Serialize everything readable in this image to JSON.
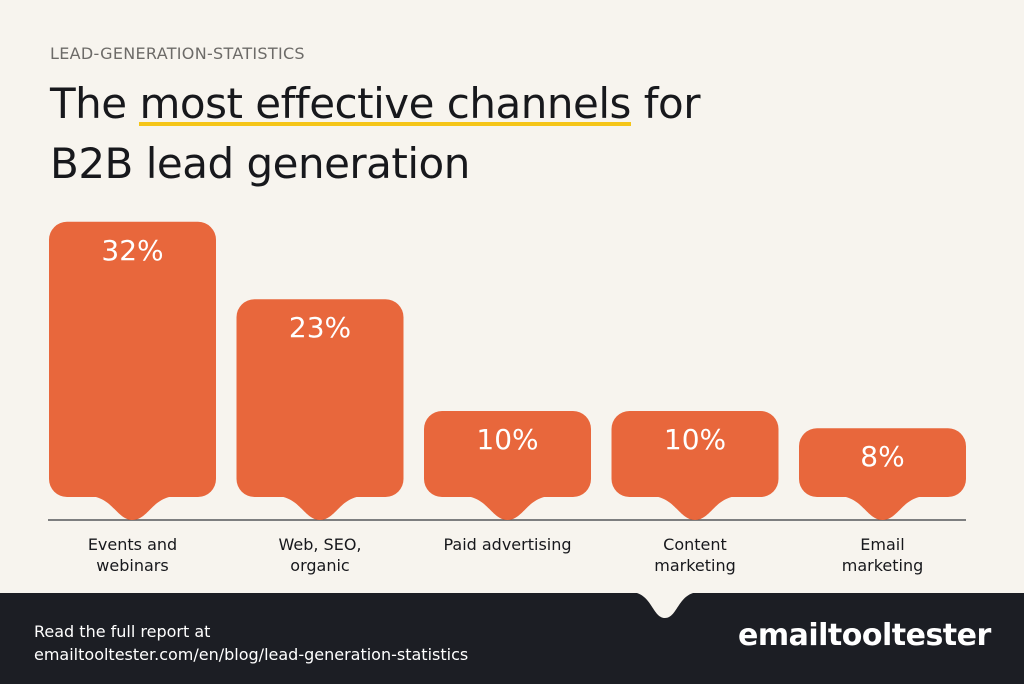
{
  "eyebrow": "LEAD-GENERATION-STATISTICS",
  "title": {
    "pre": "The ",
    "highlight": "most effective channels",
    "post": " for",
    "line2": "B2B lead generation"
  },
  "chart_data": {
    "type": "bar",
    "categories": [
      [
        "Events and",
        "webinars"
      ],
      [
        "Web, SEO,",
        "organic"
      ],
      [
        "Paid advertising"
      ],
      [
        "Content",
        "marketing"
      ],
      [
        "Email",
        "marketing"
      ]
    ],
    "values": [
      32,
      23,
      10,
      10,
      8
    ],
    "value_labels": [
      "32%",
      "23%",
      "10%",
      "10%",
      "8%"
    ],
    "unit": "%",
    "bar_color": "#e8673c",
    "grid": false,
    "legend": "none"
  },
  "footer": {
    "line1": "Read the full report at",
    "line2": "emailtooltester.com/en/blog/lead-generation-statistics",
    "logo": "emailtooltester"
  },
  "colors": {
    "background": "#f7f4ee",
    "footer": "#1c1e24",
    "highlight": "#f5c518"
  }
}
